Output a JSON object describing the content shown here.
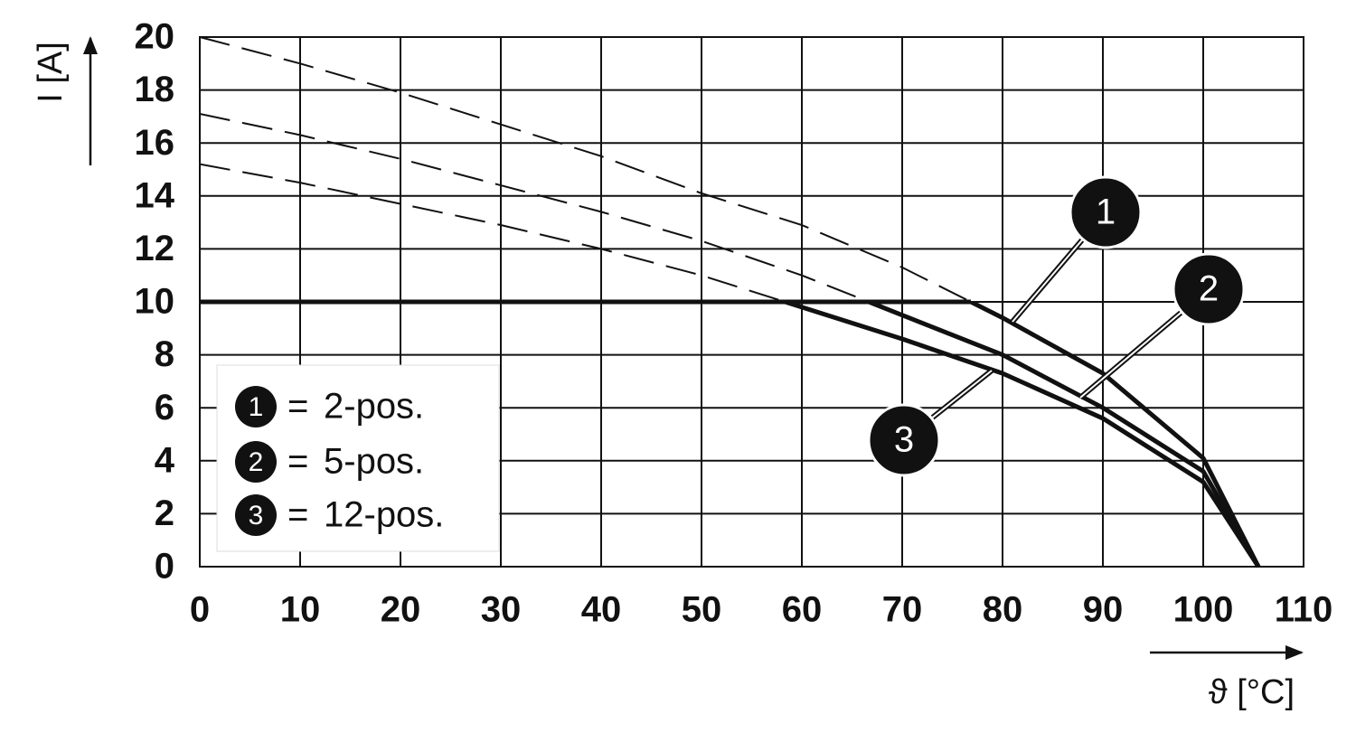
{
  "chart_data": {
    "type": "line",
    "x_label": "ϑ [°C]",
    "y_label": "I [A]",
    "xlim": [
      0,
      110
    ],
    "ylim": [
      0,
      20
    ],
    "xticks": [
      0,
      10,
      20,
      30,
      40,
      50,
      60,
      70,
      80,
      90,
      100,
      110
    ],
    "yticks": [
      0,
      2,
      4,
      6,
      8,
      10,
      12,
      14,
      16,
      18,
      20
    ],
    "grid": true,
    "limit": 10,
    "legend_separator": "=",
    "x": [
      0,
      10,
      20,
      30,
      40,
      50,
      60,
      70,
      80,
      90,
      100,
      105.5
    ],
    "series": [
      {
        "name": "2-pos.",
        "marker": "1",
        "color": "#111111",
        "values": [
          20,
          19.0,
          17.9,
          16.7,
          15.5,
          14.1,
          12.9,
          11.3,
          9.4,
          7.3,
          4.1,
          0
        ]
      },
      {
        "name": "5-pos.",
        "marker": "2",
        "color": "#111111",
        "values": [
          17.1,
          16.3,
          15.4,
          14.4,
          13.4,
          12.3,
          11.0,
          9.5,
          8.0,
          6.0,
          3.6,
          0
        ]
      },
      {
        "name": "12-pos.",
        "marker": "3",
        "color": "#111111",
        "values": [
          15.2,
          14.5,
          13.7,
          12.9,
          12.0,
          11.0,
          9.8,
          8.6,
          7.3,
          5.6,
          3.2,
          0
        ]
      }
    ]
  }
}
